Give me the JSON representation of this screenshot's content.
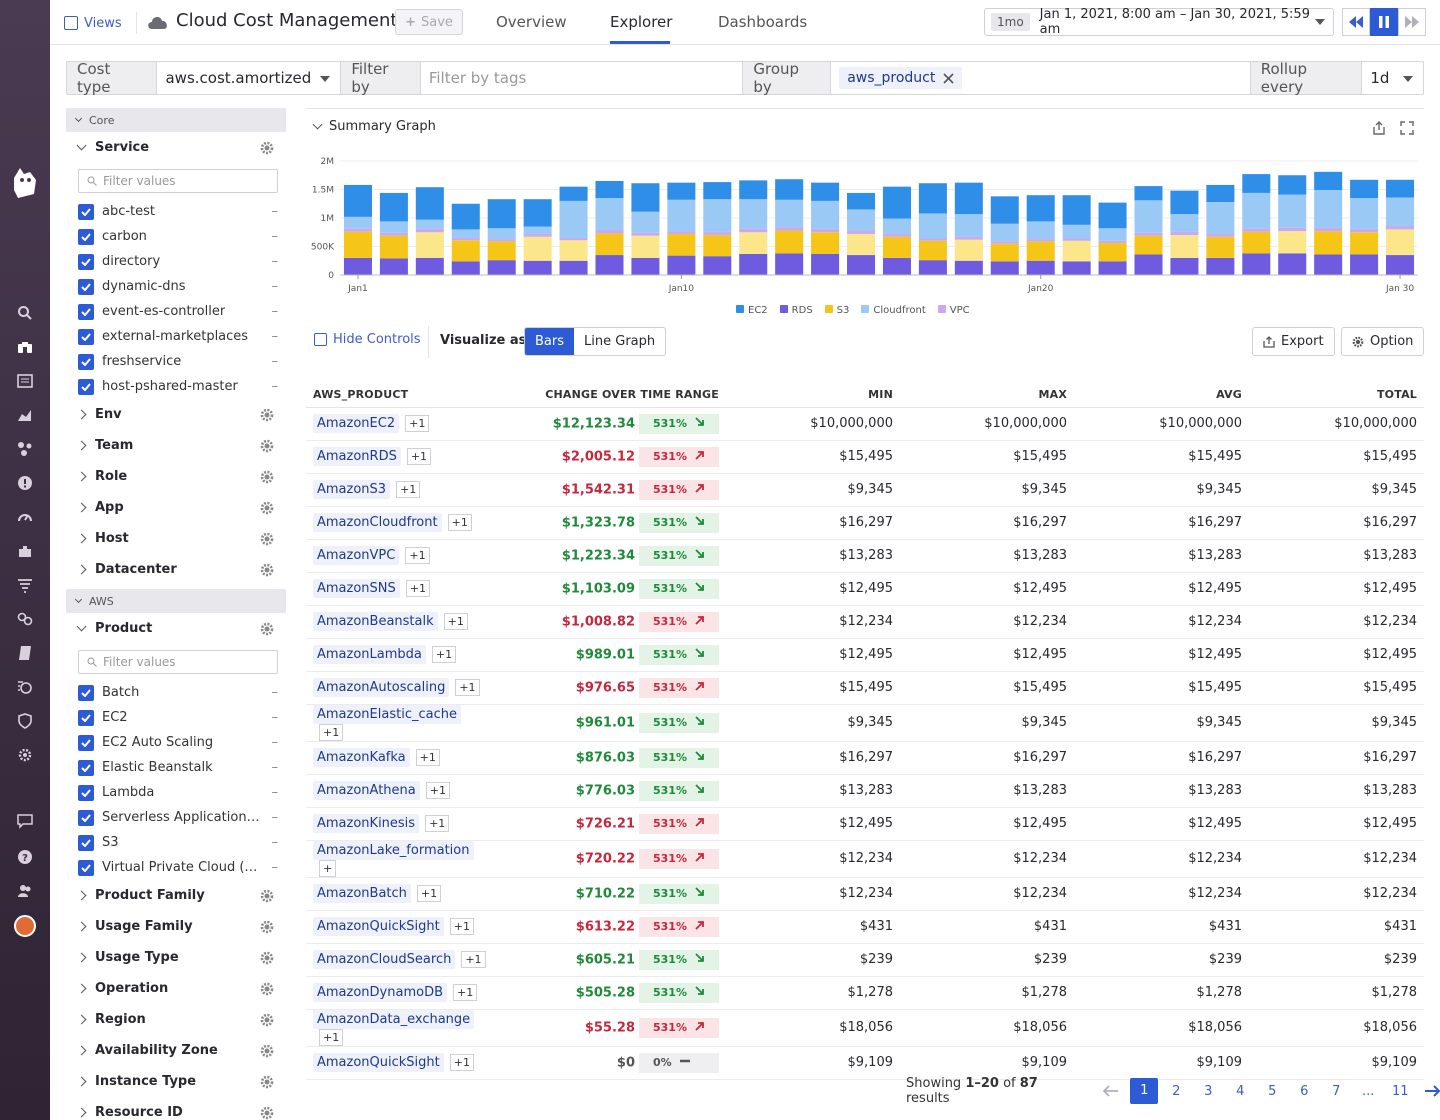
{
  "topbar": {
    "views_label": "Views",
    "title": "Cloud Cost Management",
    "save_label": "Save",
    "tabs": [
      "Overview",
      "Explorer",
      "Dashboards"
    ],
    "active_tab": "Explorer",
    "time_badge": "1mo",
    "time_range": "Jan 1, 2021, 8:00 am – Jan 30, 2021, 5:59 am"
  },
  "query": {
    "cost_type_label": "Cost type",
    "cost_type_value": "aws.cost.amortized",
    "filter_label": "Filter by",
    "filter_placeholder": "Filter by tags",
    "group_label": "Group by",
    "group_value": "aws_product",
    "rollup_label": "Rollup every",
    "rollup_value": "1d"
  },
  "sidebar": {
    "core_label": "Core",
    "service_label": "Service",
    "filter_placeholder": "Filter values",
    "services": [
      "abc-test",
      "carbon",
      "directory",
      "dynamic-dns",
      "event-es-controller",
      "external-marketplaces",
      "freshservice",
      "host-pshared-master"
    ],
    "core_facets": [
      "Env",
      "Team",
      "Role",
      "App",
      "Host",
      "Datacenter"
    ],
    "aws_label": "AWS",
    "product_label": "Product",
    "products": [
      "Batch",
      "EC2",
      "EC2 Auto Scaling",
      "Elastic Beanstalk",
      "Lambda",
      "Serverless Application R...",
      "S3",
      "Virtual Private Cloud (VPC)"
    ],
    "aws_facets": [
      "Product Family",
      "Usage Family",
      "Usage Type",
      "Operation",
      "Region",
      "Availability Zone",
      "Instance Type",
      "Resource ID"
    ],
    "dash": "–"
  },
  "graph": {
    "title": "Summary Graph",
    "legend": [
      "EC2",
      "RDS",
      "S3",
      "Cloudfront",
      "VPC"
    ]
  },
  "chart_data": {
    "type": "bar",
    "stacked": true,
    "x": [
      "Jan1",
      "Jan2",
      "Jan3",
      "Jan4",
      "Jan5",
      "Jan6",
      "Jan7",
      "Jan8",
      "Jan9",
      "Jan10",
      "Jan11",
      "Jan12",
      "Jan13",
      "Jan14",
      "Jan15",
      "Jan16",
      "Jan17",
      "Jan18",
      "Jan19",
      "Jan20",
      "Jan21",
      "Jan22",
      "Jan23",
      "Jan24",
      "Jan25",
      "Jan26",
      "Jan27",
      "Jan28",
      "Jan29",
      "Jan 30"
    ],
    "x_tick_labels": [
      "Jan1",
      "Jan10",
      "Jan20",
      "Jan 30"
    ],
    "y_ticks": [
      "0",
      "500K",
      "1M",
      "1.5M",
      "2M"
    ],
    "ylim": [
      0,
      2000000
    ],
    "grid": true,
    "legend_position": "bottom",
    "colors": {
      "RDS": "#6e5be0",
      "S3": "#f5c518",
      "S3_light": "#fbe68a",
      "VPC": "#c9a9f2",
      "Cloudfront": "#9ac9f5",
      "EC2": "#2f8fe8"
    },
    "series": [
      {
        "name": "RDS",
        "values": [
          300000,
          290000,
          300000,
          240000,
          260000,
          250000,
          250000,
          350000,
          300000,
          340000,
          330000,
          370000,
          380000,
          370000,
          350000,
          300000,
          260000,
          250000,
          240000,
          250000,
          240000,
          240000,
          360000,
          300000,
          300000,
          380000,
          380000,
          360000,
          360000,
          350000
        ]
      },
      {
        "name": "S3",
        "values": [
          460000,
          400000,
          450000,
          370000,
          330000,
          420000,
          360000,
          380000,
          390000,
          380000,
          370000,
          380000,
          400000,
          380000,
          370000,
          370000,
          340000,
          370000,
          310000,
          340000,
          360000,
          320000,
          330000,
          400000,
          370000,
          380000,
          390000,
          410000,
          390000,
          450000
        ]
      },
      {
        "name": "VPC",
        "values": [
          60000,
          50000,
          60000,
          40000,
          40000,
          50000,
          40000,
          60000,
          50000,
          50000,
          60000,
          60000,
          60000,
          60000,
          60000,
          50000,
          40000,
          50000,
          40000,
          40000,
          40000,
          40000,
          50000,
          60000,
          50000,
          60000,
          60000,
          60000,
          60000,
          60000
        ]
      },
      {
        "name": "Cloudfront",
        "values": [
          200000,
          200000,
          160000,
          150000,
          190000,
          130000,
          650000,
          560000,
          370000,
          550000,
          570000,
          520000,
          480000,
          490000,
          370000,
          270000,
          440000,
          400000,
          310000,
          310000,
          240000,
          220000,
          570000,
          310000,
          560000,
          620000,
          580000,
          660000,
          540000,
          500000
        ]
      },
      {
        "name": "EC2",
        "values": [
          560000,
          500000,
          570000,
          450000,
          510000,
          480000,
          250000,
          300000,
          500000,
          300000,
          300000,
          330000,
          360000,
          320000,
          290000,
          560000,
          530000,
          550000,
          480000,
          460000,
          520000,
          450000,
          250000,
          410000,
          300000,
          330000,
          340000,
          320000,
          320000,
          310000
        ]
      }
    ]
  },
  "controls": {
    "hide_controls": "Hide Controls",
    "visualize_as": "Visualize as",
    "viz_options": [
      "Bars",
      "Line Graph"
    ],
    "export": "Export",
    "option": "Option"
  },
  "table": {
    "headers": [
      "AWS_PRODUCT",
      "CHANGE OVER TIME RANGE",
      "MIN",
      "MAX",
      "AVG",
      "TOTAL"
    ],
    "rows": [
      {
        "product": "AmazonEC2",
        "tag": "+1",
        "change": "$12,123.34",
        "pct": "531%",
        "dir": "g",
        "min": "$10,000,000",
        "max": "$10,000,000",
        "avg": "$10,000,000",
        "total": "$10,000,000"
      },
      {
        "product": "AmazonRDS",
        "tag": "+1",
        "change": "$2,005.12",
        "pct": "531%",
        "dir": "r",
        "min": "$15,495",
        "max": "$15,495",
        "avg": "$15,495",
        "total": "$15,495"
      },
      {
        "product": "AmazonS3",
        "tag": "+1",
        "change": "$1,542.31",
        "pct": "531%",
        "dir": "r",
        "min": "$9,345",
        "max": "$9,345",
        "avg": "$9,345",
        "total": "$9,345"
      },
      {
        "product": "AmazonCloudfront",
        "tag": "+1",
        "change": "$1,323.78",
        "pct": "531%",
        "dir": "g",
        "min": "$16,297",
        "max": "$16,297",
        "avg": "$16,297",
        "total": "$16,297"
      },
      {
        "product": "AmazonVPC",
        "tag": "+1",
        "change": "$1,223.34",
        "pct": "531%",
        "dir": "g",
        "min": "$13,283",
        "max": "$13,283",
        "avg": "$13,283",
        "total": "$13,283"
      },
      {
        "product": "AmazonSNS",
        "tag": "+1",
        "change": "$1,103.09",
        "pct": "531%",
        "dir": "g",
        "min": "$12,495",
        "max": "$12,495",
        "avg": "$12,495",
        "total": "$12,495"
      },
      {
        "product": "AmazonBeanstalk",
        "tag": "+1",
        "change": "$1,008.82",
        "pct": "531%",
        "dir": "r",
        "min": "$12,234",
        "max": "$12,234",
        "avg": "$12,234",
        "total": "$12,234"
      },
      {
        "product": "AmazonLambda",
        "tag": "+1",
        "change": "$989.01",
        "pct": "531%",
        "dir": "g",
        "min": "$12,495",
        "max": "$12,495",
        "avg": "$12,495",
        "total": "$12,495"
      },
      {
        "product": "AmazonAutoscaling",
        "tag": "+1",
        "change": "$976.65",
        "pct": "531%",
        "dir": "r",
        "min": "$15,495",
        "max": "$15,495",
        "avg": "$15,495",
        "total": "$15,495"
      },
      {
        "product": "AmazonElastic_cache",
        "tag": "+1",
        "change": "$961.01",
        "pct": "531%",
        "dir": "g",
        "min": "$9,345",
        "max": "$9,345",
        "avg": "$9,345",
        "total": "$9,345"
      },
      {
        "product": "AmazonKafka",
        "tag": "+1",
        "change": "$876.03",
        "pct": "531%",
        "dir": "g",
        "min": "$16,297",
        "max": "$16,297",
        "avg": "$16,297",
        "total": "$16,297"
      },
      {
        "product": "AmazonAthena",
        "tag": "+1",
        "change": "$776.03",
        "pct": "531%",
        "dir": "g",
        "min": "$13,283",
        "max": "$13,283",
        "avg": "$13,283",
        "total": "$13,283"
      },
      {
        "product": "AmazonKinesis",
        "tag": "+1",
        "change": "$726.21",
        "pct": "531%",
        "dir": "r",
        "min": "$12,495",
        "max": "$12,495",
        "avg": "$12,495",
        "total": "$12,495"
      },
      {
        "product": "AmazonLake_formation",
        "tag": "+",
        "change": "$720.22",
        "pct": "531%",
        "dir": "r",
        "min": "$12,234",
        "max": "$12,234",
        "avg": "$12,234",
        "total": "$12,234"
      },
      {
        "product": "AmazonBatch",
        "tag": "+1",
        "change": "$710.22",
        "pct": "531%",
        "dir": "g",
        "min": "$12,234",
        "max": "$12,234",
        "avg": "$12,234",
        "total": "$12,234"
      },
      {
        "product": "AmazonQuickSight",
        "tag": "+1",
        "change": "$613.22",
        "pct": "531%",
        "dir": "r",
        "min": "$431",
        "max": "$431",
        "avg": "$431",
        "total": "$431"
      },
      {
        "product": "AmazonCloudSearch",
        "tag": "+1",
        "change": "$605.21",
        "pct": "531%",
        "dir": "g",
        "min": "$239",
        "max": "$239",
        "avg": "$239",
        "total": "$239"
      },
      {
        "product": "AmazonDynamoDB",
        "tag": "+1",
        "change": "$505.28",
        "pct": "531%",
        "dir": "g",
        "min": "$1,278",
        "max": "$1,278",
        "avg": "$1,278",
        "total": "$1,278"
      },
      {
        "product": "AmazonData_exchange",
        "tag": "+1",
        "change": "$55.28",
        "pct": "531%",
        "dir": "r",
        "min": "$18,056",
        "max": "$18,056",
        "avg": "$18,056",
        "total": "$18,056"
      },
      {
        "product": "AmazonQuickSight",
        "tag": "+1",
        "change": "$0",
        "pct": "0%",
        "dir": "n",
        "min": "$9,109",
        "max": "$9,109",
        "avg": "$9,109",
        "total": "$9,109"
      }
    ]
  },
  "pagination": {
    "showing_prefix": "Showing ",
    "showing_range": "1–20",
    "showing_mid": " of ",
    "showing_total": "87",
    "showing_suffix": " results",
    "pages": [
      "1",
      "2",
      "3",
      "4",
      "5",
      "6",
      "7",
      "...",
      "11"
    ],
    "current": "1"
  }
}
